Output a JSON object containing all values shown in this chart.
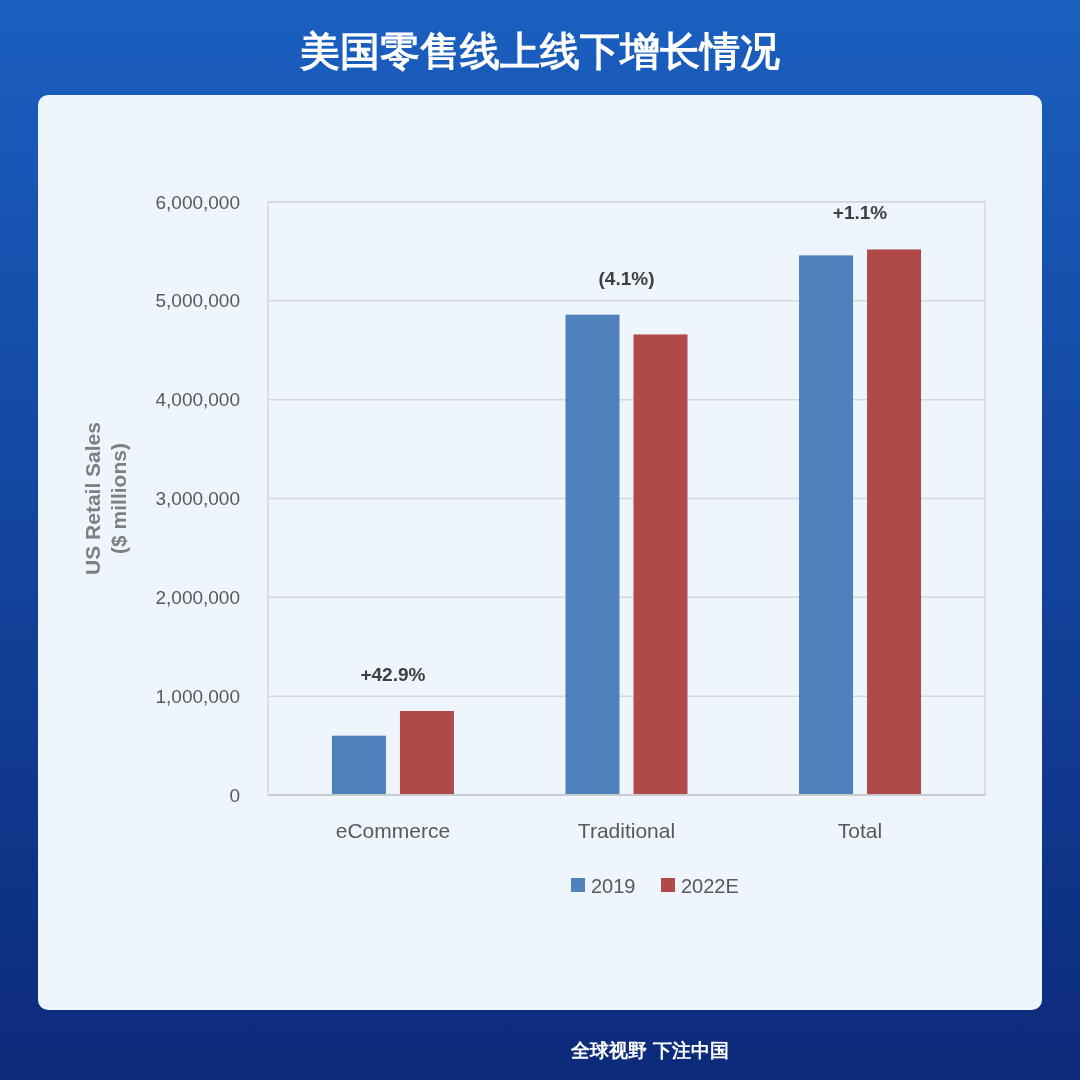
{
  "chart_data": {
    "type": "bar",
    "title": "美国零售线上线下增长情况",
    "ylabel": "US Retail Sales\n($ millions)",
    "categories": [
      "eCommerce",
      "Traditional",
      "Total"
    ],
    "series": [
      {
        "name": "2019",
        "color": "#4f81bd",
        "values": [
          600000,
          4860000,
          5460000
        ]
      },
      {
        "name": "2022E",
        "color": "#b04a48",
        "values": [
          850000,
          4660000,
          5520000
        ]
      }
    ],
    "ylim": [
      0,
      6000000
    ],
    "yticks": [
      {
        "value": 0,
        "label": "0"
      },
      {
        "value": 1000000,
        "label": "1,000,000"
      },
      {
        "value": 2000000,
        "label": "2,000,000"
      },
      {
        "value": 3000000,
        "label": "3,000,000"
      },
      {
        "value": 4000000,
        "label": "4,000,000"
      },
      {
        "value": 5000000,
        "label": "5,000,000"
      },
      {
        "value": 6000000,
        "label": "6,000,000"
      }
    ],
    "grid": "y",
    "legend": "bottom",
    "annotations": [
      "+42.9%",
      "(4.1%)",
      "+1.1%",
      "全球视野 下注中国"
    ]
  }
}
